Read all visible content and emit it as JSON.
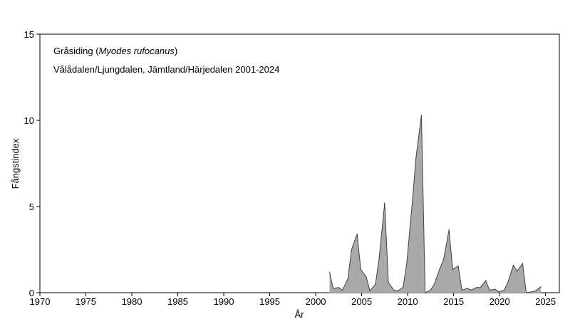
{
  "chart_data": {
    "type": "area",
    "title_species": "Gråsiding",
    "title_latin": "Myodes rufocanus",
    "subtitle": "Vålådalen/Ljungdalen, Jämtland/Härjedalen 2001-2024",
    "xlabel": "År",
    "ylabel": "Fångstindex",
    "xlim": [
      1970,
      2026.5
    ],
    "ylim": [
      0,
      15
    ],
    "x_ticks": [
      1970,
      1975,
      1980,
      1985,
      1990,
      1995,
      2000,
      2005,
      2010,
      2015,
      2020,
      2025
    ],
    "y_ticks": [
      0,
      5,
      10,
      15
    ],
    "grid": false,
    "legend": "none",
    "fill_color": "#a9a9a9",
    "line_color": "#404040",
    "x": [
      2001.5,
      2001.9,
      2002.5,
      2002.9,
      2003.5,
      2003.9,
      2004.5,
      2004.9,
      2005.5,
      2005.9,
      2006.5,
      2006.9,
      2007.5,
      2007.9,
      2008.5,
      2008.9,
      2009.5,
      2009.9,
      2010.5,
      2010.9,
      2011.5,
      2011.9,
      2012.5,
      2012.9,
      2013.5,
      2013.9,
      2014.5,
      2014.9,
      2015.5,
      2015.9,
      2016.5,
      2016.9,
      2017.5,
      2017.9,
      2018.5,
      2018.9,
      2019.5,
      2019.9,
      2020.5,
      2020.9,
      2021.5,
      2021.9,
      2022.5,
      2022.9,
      2023.5,
      2023.9,
      2024.5
    ],
    "y": [
      1.2,
      0.25,
      0.3,
      0.15,
      0.8,
      2.5,
      3.4,
      1.35,
      0.9,
      0.1,
      0.5,
      2.0,
      5.2,
      0.6,
      0.15,
      0.1,
      0.3,
      1.7,
      5.2,
      7.8,
      10.3,
      0.0,
      0.15,
      0.5,
      1.4,
      1.9,
      3.65,
      1.35,
      1.55,
      0.15,
      0.25,
      0.15,
      0.3,
      0.3,
      0.7,
      0.15,
      0.2,
      0.05,
      0.15,
      0.6,
      1.6,
      1.25,
      1.7,
      0.0,
      0.05,
      0.1,
      0.35
    ]
  }
}
